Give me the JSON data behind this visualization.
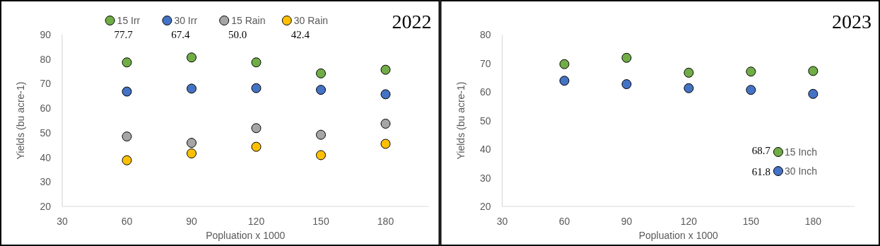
{
  "chart_data": [
    {
      "type": "scatter",
      "title": "2022",
      "xlabel": "Popluation x 1000",
      "ylabel": "Yields (bu acre-1)",
      "x": [
        60,
        90,
        120,
        150,
        180
      ],
      "xlim": [
        30,
        200
      ],
      "xticks": [
        30,
        60,
        90,
        120,
        150,
        180
      ],
      "ylim": [
        20,
        90
      ],
      "yticks": [
        20,
        30,
        40,
        50,
        60,
        70,
        80,
        90
      ],
      "grid": false,
      "legend": "top",
      "marker": "circle",
      "annotations": [
        "77.7",
        "67.4",
        "50.0",
        "42.4"
      ],
      "series": [
        {
          "name": "15 Irr",
          "color": "#70ad47",
          "values": [
            78.7,
            80.7,
            78.7,
            74.2,
            75.7
          ]
        },
        {
          "name": "30 Irr",
          "color": "#4472c4",
          "values": [
            66.8,
            68.0,
            68.2,
            67.5,
            65.7
          ]
        },
        {
          "name": "15 Rain",
          "color": "#a5a5a5",
          "values": [
            48.5,
            45.9,
            51.9,
            49.2,
            53.7
          ]
        },
        {
          "name": "30 Rain",
          "color": "#ffc000",
          "values": [
            38.8,
            41.6,
            44.3,
            40.9,
            45.5
          ]
        }
      ]
    },
    {
      "type": "scatter",
      "title": "2023",
      "xlabel": "Popluation x 1000",
      "ylabel": "Yields (bu acre-1)",
      "x": [
        60,
        90,
        120,
        150,
        180
      ],
      "xlim": [
        30,
        200
      ],
      "xticks": [
        30,
        60,
        90,
        120,
        150,
        180
      ],
      "ylim": [
        20,
        80
      ],
      "yticks": [
        20,
        30,
        40,
        50,
        60,
        70,
        80
      ],
      "grid": false,
      "legend": "bottom right",
      "marker": "circle",
      "annotations": [
        "68.7",
        "61.8"
      ],
      "series": [
        {
          "name": "15 Inch",
          "color": "#70ad47",
          "values": [
            69.7,
            71.9,
            66.7,
            67.1,
            67.3
          ]
        },
        {
          "name": "30 Inch",
          "color": "#4472c4",
          "values": [
            63.9,
            62.7,
            61.3,
            60.7,
            59.3
          ]
        }
      ]
    }
  ]
}
